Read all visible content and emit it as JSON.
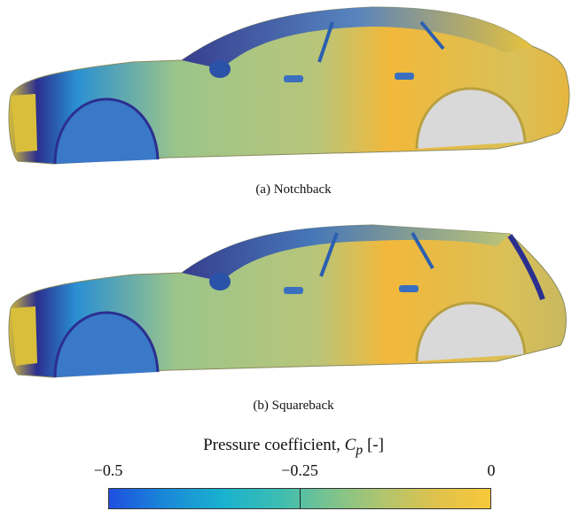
{
  "figures": [
    {
      "caption": "(a)  Notchback"
    },
    {
      "caption": "(b)  Squareback"
    }
  ],
  "colorbar": {
    "title_prefix": "Pressure coefficient, ",
    "symbol": "C",
    "subscript": "p",
    "unit": "[-]",
    "ticks": [
      "−0.5",
      "−0.25",
      "0"
    ],
    "range": [
      -0.5,
      0
    ],
    "colors": {
      "low": "#1f4fe0",
      "mid": "#7bc38e",
      "high": "#f8c83a",
      "dark": "#2b2f8f"
    }
  }
}
